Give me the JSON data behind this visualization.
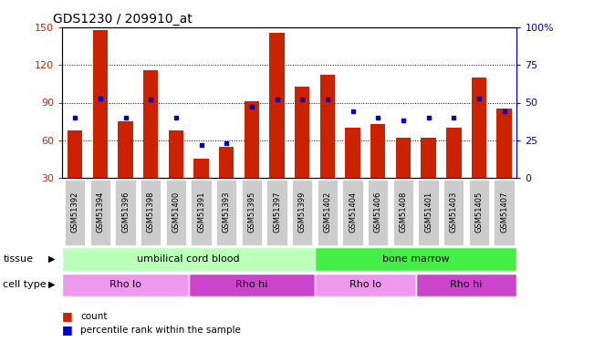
{
  "title": "GDS1230 / 209910_at",
  "samples": [
    "GSM51392",
    "GSM51394",
    "GSM51396",
    "GSM51398",
    "GSM51400",
    "GSM51391",
    "GSM51393",
    "GSM51395",
    "GSM51397",
    "GSM51399",
    "GSM51402",
    "GSM51404",
    "GSM51406",
    "GSM51408",
    "GSM51401",
    "GSM51403",
    "GSM51405",
    "GSM51407"
  ],
  "counts": [
    68,
    148,
    75,
    116,
    68,
    45,
    55,
    91,
    146,
    103,
    112,
    70,
    73,
    62,
    62,
    70,
    110,
    85
  ],
  "percentiles": [
    40,
    53,
    40,
    52,
    40,
    22,
    23,
    47,
    52,
    52,
    52,
    44,
    40,
    38,
    40,
    40,
    53,
    44
  ],
  "ylim": [
    30,
    150
  ],
  "yticks_left": [
    30,
    60,
    90,
    120,
    150
  ],
  "yticks_right": [
    0,
    25,
    50,
    75,
    100
  ],
  "bar_color": "#cc2200",
  "dot_color": "#0000cc",
  "tissue_labels": [
    {
      "text": "umbilical cord blood",
      "start": 0,
      "end": 9,
      "color": "#bbffbb"
    },
    {
      "text": "bone marrow",
      "start": 10,
      "end": 17,
      "color": "#44ee44"
    }
  ],
  "cell_type_labels": [
    {
      "text": "Rho lo",
      "start": 0,
      "end": 4,
      "color": "#ee99ee"
    },
    {
      "text": "Rho hi",
      "start": 5,
      "end": 9,
      "color": "#cc44cc"
    },
    {
      "text": "Rho lo",
      "start": 10,
      "end": 13,
      "color": "#ee99ee"
    },
    {
      "text": "Rho hi",
      "start": 14,
      "end": 17,
      "color": "#cc44cc"
    }
  ],
  "tissue_row_label": "tissue",
  "cell_type_row_label": "cell type",
  "legend_count": "count",
  "legend_percentile": "percentile rank within the sample"
}
